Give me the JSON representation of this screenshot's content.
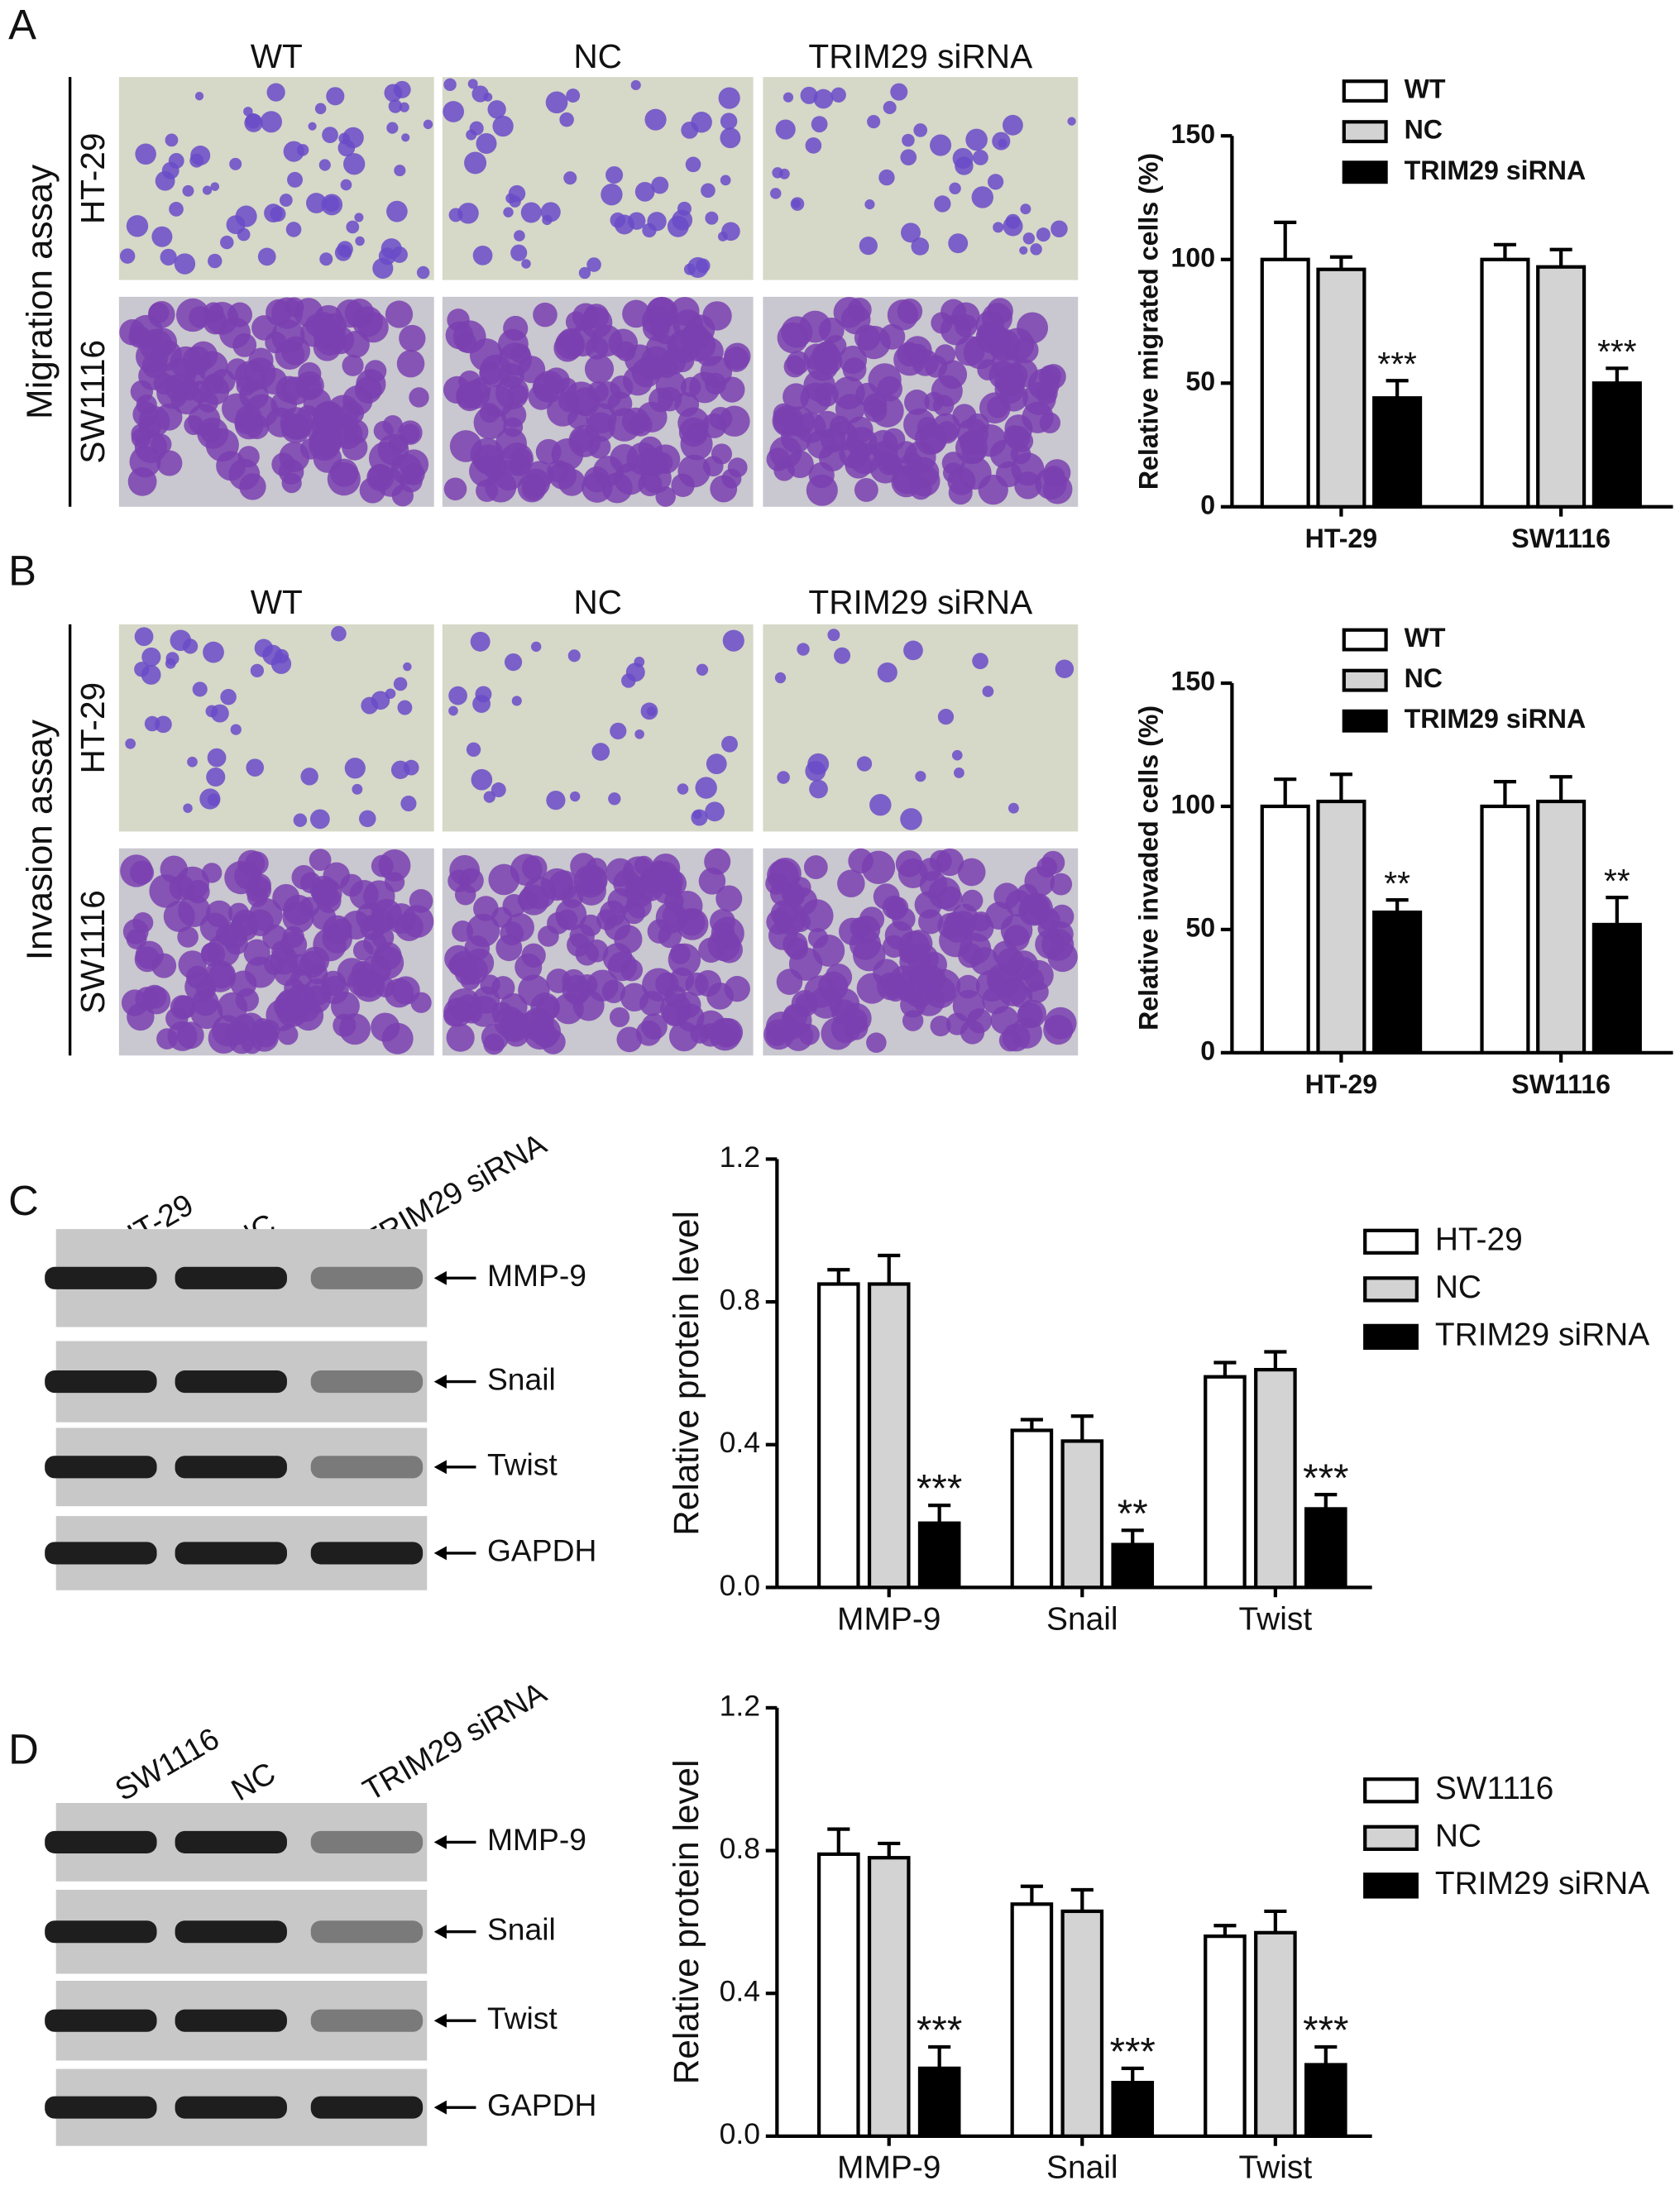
{
  "panels": [
    {
      "letter": "A",
      "assay": "Migration assay",
      "columns": [
        "WT",
        "NC",
        "TRIM29 siRNA"
      ],
      "rows": [
        "HT-29",
        "SW1116"
      ]
    },
    {
      "letter": "B",
      "assay": "Invasion assay",
      "columns": [
        "WT",
        "NC",
        "TRIM29 siRNA"
      ],
      "rows": [
        "HT-29",
        "SW1116"
      ]
    },
    {
      "letter": "C",
      "lanes": [
        "HT-29",
        "NC",
        "TRIM29 siRNA"
      ],
      "bands": [
        "MMP-9",
        "Snail",
        "Twist",
        "GAPDH"
      ]
    },
    {
      "letter": "D",
      "lanes": [
        "SW1116",
        "NC",
        "TRIM29 siRNA"
      ],
      "bands": [
        "MMP-9",
        "Snail",
        "Twist",
        "GAPDH"
      ]
    }
  ],
  "chart_data": [
    {
      "type": "bar",
      "y_label": "Relative migrated cells (%)",
      "categories": [
        "HT-29",
        "SW1116"
      ],
      "ylim": [
        0,
        150
      ],
      "yticks": [
        0,
        50,
        100,
        150
      ],
      "series": [
        {
          "name": "WT",
          "color": "#ffffff",
          "values": [
            100,
            100
          ],
          "errors": [
            15,
            6
          ]
        },
        {
          "name": "NC",
          "color": "#d3d3d3",
          "values": [
            96,
            97
          ],
          "errors": [
            5,
            7
          ]
        },
        {
          "name": "TRIM29 siRNA",
          "color": "#000000",
          "values": [
            44,
            50
          ],
          "errors": [
            7,
            6
          ],
          "significance": [
            "***",
            "***"
          ]
        }
      ]
    },
    {
      "type": "bar",
      "y_label": "Relative invaded cells (%)",
      "categories": [
        "HT-29",
        "SW1116"
      ],
      "ylim": [
        0,
        150
      ],
      "yticks": [
        0,
        50,
        100,
        150
      ],
      "series": [
        {
          "name": "WT",
          "color": "#ffffff",
          "values": [
            100,
            100
          ],
          "errors": [
            11,
            10
          ]
        },
        {
          "name": "NC",
          "color": "#d3d3d3",
          "values": [
            102,
            102
          ],
          "errors": [
            11,
            10
          ]
        },
        {
          "name": "TRIM29 siRNA",
          "color": "#000000",
          "values": [
            57,
            52
          ],
          "errors": [
            5,
            11
          ],
          "significance": [
            "**",
            "**"
          ]
        }
      ]
    },
    {
      "type": "bar",
      "y_label": "Relative protein level",
      "categories": [
        "MMP-9",
        "Snail",
        "Twist"
      ],
      "ylim": [
        0,
        1.2
      ],
      "yticks": [
        {
          "value": 0,
          "label": "0.0"
        },
        0.4,
        0.8,
        1.2
      ],
      "series": [
        {
          "name": "HT-29",
          "color": "#ffffff",
          "values": [
            0.85,
            0.44,
            0.59
          ],
          "errors": [
            0.04,
            0.03,
            0.04
          ]
        },
        {
          "name": "NC",
          "color": "#d3d3d3",
          "values": [
            0.85,
            0.41,
            0.61
          ],
          "errors": [
            0.08,
            0.07,
            0.05
          ]
        },
        {
          "name": "TRIM29 siRNA",
          "color": "#000000",
          "values": [
            0.18,
            0.12,
            0.22
          ],
          "errors": [
            0.05,
            0.04,
            0.04
          ],
          "significance": [
            "***",
            "**",
            "***"
          ]
        }
      ]
    },
    {
      "type": "bar",
      "y_label": "Relative protein level",
      "categories": [
        "MMP-9",
        "Snail",
        "Twist"
      ],
      "ylim": [
        0,
        1.2
      ],
      "yticks": [
        {
          "value": 0,
          "label": "0.0"
        },
        0.4,
        0.8,
        1.2
      ],
      "series": [
        {
          "name": "SW1116",
          "color": "#ffffff",
          "values": [
            0.79,
            0.65,
            0.56
          ],
          "errors": [
            0.07,
            0.05,
            0.03
          ]
        },
        {
          "name": "NC",
          "color": "#d3d3d3",
          "values": [
            0.78,
            0.63,
            0.57
          ],
          "errors": [
            0.04,
            0.06,
            0.06
          ]
        },
        {
          "name": "TRIM29 siRNA",
          "color": "#000000",
          "values": [
            0.19,
            0.15,
            0.2
          ],
          "errors": [
            0.06,
            0.04,
            0.05
          ],
          "significance": [
            "***",
            "***",
            "***"
          ]
        }
      ]
    }
  ]
}
